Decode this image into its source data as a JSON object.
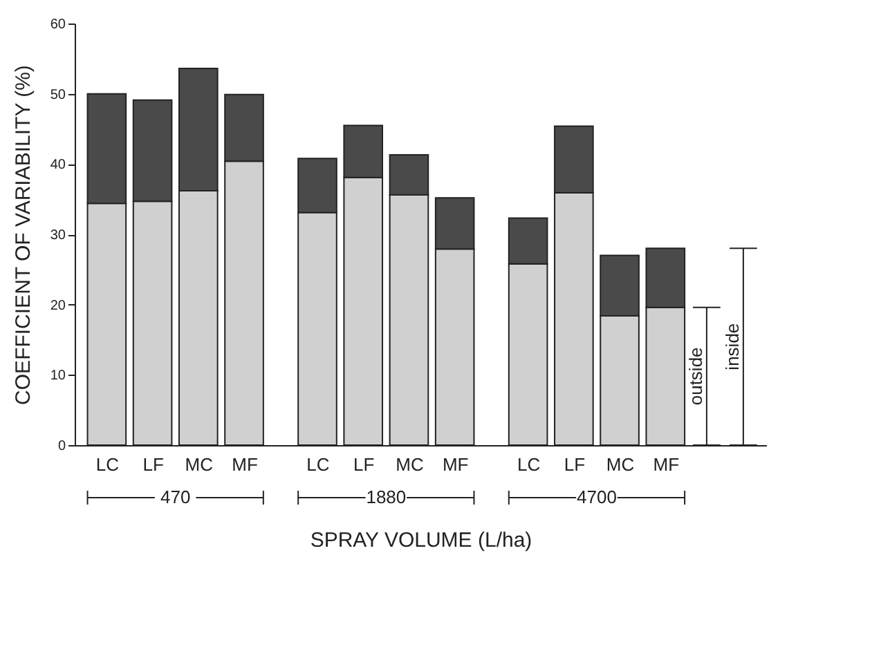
{
  "chart_data": {
    "type": "bar",
    "stacked": true,
    "xlabel": "SPRAY VOLUME (L/ha)",
    "ylabel": "COEFFICIENT OF VARIABILITY (%)",
    "categories": [
      "LC",
      "LF",
      "MC",
      "MF",
      "LC",
      "LF",
      "MC",
      "MF",
      "LC",
      "LF",
      "MC",
      "MF"
    ],
    "series": [
      {
        "color": "#d0d0d0",
        "values": [
          34.4,
          34.7,
          36.2,
          40.4,
          33.1,
          38.1,
          35.6,
          27.9,
          25.8,
          35.9,
          18.4,
          19.6
        ]
      },
      {
        "color": "#4a4a4a",
        "values": [
          15.6,
          14.4,
          17.4,
          9.5,
          7.7,
          7.4,
          5.7,
          7.3,
          6.5,
          9.5,
          8.6,
          8.4
        ]
      }
    ],
    "ylim": [
      0,
      60
    ],
    "yticks": [
      0,
      10,
      20,
      30,
      40,
      50,
      60
    ],
    "grid": false,
    "legend": false,
    "annotations": [
      "470",
      "1880",
      "4700",
      "outside",
      "inside"
    ]
  }
}
